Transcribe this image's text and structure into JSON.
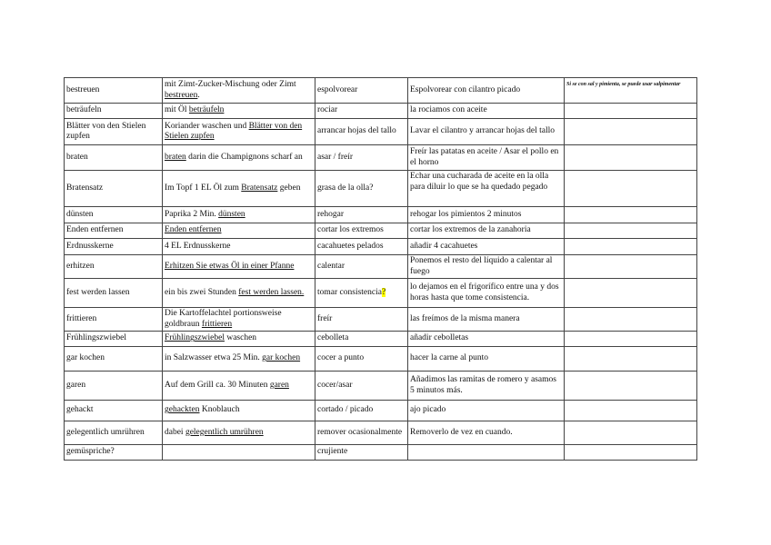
{
  "rows": [
    {
      "de": "bestreuen",
      "ex": {
        "pre": "mit Zimt-Zucker-Mischung oder Zimt ",
        "u": "bestreuen",
        "post": "."
      },
      "es": "espolvorear",
      "es_ex": "Espolvorear con cilantro picado",
      "note": "Si se con sal y pimienta, se puede usar salpimentar"
    },
    {
      "de": "beträufeln",
      "ex": {
        "pre": "mit Öl ",
        "u": "beträufeln",
        "post": ""
      },
      "es": "rociar",
      "es_ex": "la rociamos con aceite",
      "note": ""
    },
    {
      "de": "Blätter von den Stielen zupfen",
      "ex": {
        "pre": "Koriander waschen und ",
        "u": "Blätter von den Stielen zupfen",
        "post": ""
      },
      "es": "arrancar hojas del tallo",
      "es_ex": "Lavar el cilantro y arrancar hojas del tallo",
      "note": ""
    },
    {
      "de": "braten",
      "ex": {
        "pre": "",
        "u": "braten",
        "post": " darin die Champignons scharf an"
      },
      "es": "asar / freír",
      "es_ex": "Freír las patatas en aceite / Asar el pollo en el horno",
      "note": ""
    },
    {
      "de": "Bratensatz",
      "ex": {
        "pre": "Im Topf 1 EL Öl zum ",
        "u": "Bratensatz",
        "post": " geben"
      },
      "es": "grasa de la olla?",
      "es_ex": "Echar una cucharada de aceite en la olla para diluir lo que se ha quedado pegado",
      "note": ""
    },
    {
      "de": "dünsten",
      "ex": {
        "pre": "Paprika 2 Min. ",
        "u": "dünsten",
        "post": ""
      },
      "es": "rehogar",
      "es_ex": "rehogar los pimientos 2 minutos",
      "note": ""
    },
    {
      "de": "Enden entfernen",
      "ex": {
        "pre": "",
        "u": "Enden entfernen",
        "post": ""
      },
      "es": "cortar los extremos",
      "es_ex": "cortar los extremos de la zanahoria",
      "note": ""
    },
    {
      "de": "Erdnusskerne",
      "ex": {
        "pre": "4 EL Erdnusskerne",
        "u": "",
        "post": ""
      },
      "es": "cacahuetes pelados",
      "es_ex": "añadir 4 cacahuetes",
      "note": ""
    },
    {
      "de": "erhitzen",
      "ex": {
        "pre": "",
        "u": "Erhitzen Sie etwas Öl in einer Pfanne",
        "post": ""
      },
      "es": "calentar",
      "es_ex": "Ponemos el resto del líquido a calentar al fuego",
      "note": ""
    },
    {
      "de": "fest werden lassen",
      "ex": {
        "pre": "ein bis zwei Stunden ",
        "u": "fest werden lassen.",
        "post": ""
      },
      "es": "tomar consistencia",
      "es_mark": "?",
      "es_ex": "lo dejamos en el frigorífico entre una y dos horas hasta que tome consistencia.",
      "note": ""
    },
    {
      "de": "frittieren",
      "ex": {
        "pre": "Die Kartoffelachtel portionsweise goldbraun ",
        "u": "frittieren",
        "post": ""
      },
      "es": "freír",
      "es_ex": "las freímos de la misma manera",
      "note": ""
    },
    {
      "de": "Frühlingszwiebel",
      "ex": {
        "pre": "",
        "u": "Frühlingszwiebel",
        "post": " waschen"
      },
      "es": "cebolleta",
      "es_ex": "añadir cebolletas",
      "note": ""
    },
    {
      "de": "gar kochen",
      "ex": {
        "pre": "in Salzwasser etwa 25 Min. ",
        "u": "gar kochen",
        "post": ""
      },
      "es": "cocer a punto",
      "es_ex": "hacer la carne al punto",
      "note": ""
    },
    {
      "de": "garen",
      "ex": {
        "pre": "Auf dem Grill ca. 30 Minuten ",
        "u": "garen",
        "post": ""
      },
      "es": "cocer/asar",
      "es_ex": "Añadimos las ramitas de romero y asamos 5 minutos más.",
      "note": ""
    },
    {
      "de": "gehackt",
      "ex": {
        "pre": "",
        "u": "gehackten",
        "post": " Knoblauch"
      },
      "es": "cortado / picado",
      "es_ex": "ajo picado",
      "note": ""
    },
    {
      "de": "gelegentlich umrühren",
      "ex": {
        "pre": "dabei ",
        "u": "gelegentlich umrühren",
        "post": ""
      },
      "es": "remover ocasionalmente",
      "es_ex": "Removerlo de vez en cuando.",
      "note": ""
    },
    {
      "de": "gemüspriche?",
      "ex": {
        "pre": "",
        "u": "",
        "post": ""
      },
      "es": "crujiente",
      "es_ex": "",
      "note": ""
    }
  ],
  "colors": {
    "highlight": "#ffff00",
    "border": "#444444"
  }
}
